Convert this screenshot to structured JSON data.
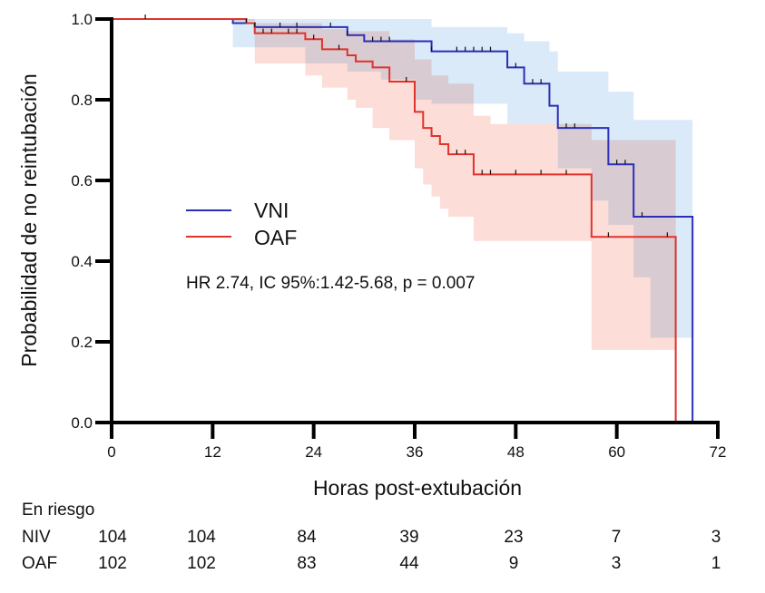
{
  "chart_data": {
    "type": "line",
    "subtype": "kaplan-meier",
    "title": "",
    "xlabel": "Horas post-extubación",
    "ylabel": "Probabilidad de no reintubación",
    "xlim": [
      0,
      72
    ],
    "ylim": [
      0,
      1.0
    ],
    "xticks": [
      0,
      12,
      24,
      36,
      48,
      60,
      72
    ],
    "xtick_labels": [
      "0",
      "12",
      "24",
      "36",
      "48",
      "60",
      "72"
    ],
    "yticks": [
      0.0,
      0.2,
      0.4,
      0.6,
      0.8,
      1.0
    ],
    "ytick_labels": [
      "0.0",
      "0.2",
      "0.4",
      "0.6",
      "0.8",
      "1.0"
    ],
    "grid": false,
    "legend_position": "center-left",
    "annotation": "HR 2.74, IC 95%:1.42-5.68, p = 0.007",
    "series": [
      {
        "name": "VNI",
        "color": "#2b2fb8",
        "band_color": "#cfe3f7",
        "steps": [
          [
            0,
            1.0
          ],
          [
            14.4,
            0.99
          ],
          [
            17,
            0.98
          ],
          [
            28,
            0.96
          ],
          [
            30,
            0.945
          ],
          [
            38,
            0.92
          ],
          [
            47,
            0.88
          ],
          [
            49,
            0.84
          ],
          [
            52,
            0.785
          ],
          [
            53,
            0.73
          ],
          [
            59,
            0.64
          ],
          [
            62,
            0.51
          ],
          [
            69,
            0.0
          ]
        ],
        "ci_lower": [
          [
            0,
            1.0
          ],
          [
            14.4,
            0.93
          ],
          [
            17,
            0.93
          ],
          [
            23,
            0.89
          ],
          [
            28,
            0.87
          ],
          [
            32,
            0.85
          ],
          [
            36,
            0.8
          ],
          [
            38,
            0.79
          ],
          [
            47,
            0.74
          ],
          [
            53,
            0.63
          ],
          [
            57,
            0.55
          ],
          [
            59,
            0.49
          ],
          [
            62,
            0.36
          ],
          [
            64,
            0.21
          ],
          [
            69,
            0.21
          ]
        ],
        "ci_upper": [
          [
            0,
            1.0
          ],
          [
            14.4,
            1.0
          ],
          [
            17,
            1.0
          ],
          [
            38,
            0.98
          ],
          [
            47,
            0.965
          ],
          [
            49,
            0.945
          ],
          [
            52,
            0.92
          ],
          [
            53,
            0.87
          ],
          [
            59,
            0.82
          ],
          [
            62,
            0.75
          ],
          [
            69,
            0.75
          ]
        ],
        "censor_times": [
          4,
          17,
          20,
          22,
          26,
          28,
          31,
          32,
          33,
          38,
          41,
          42,
          43,
          44,
          45,
          48,
          50,
          51,
          54,
          55,
          60,
          61,
          63
        ]
      },
      {
        "name": "OAF",
        "color": "#e0332c",
        "band_color": "#fbd1ca",
        "steps": [
          [
            0,
            1.0
          ],
          [
            16,
            0.99
          ],
          [
            17,
            0.965
          ],
          [
            23,
            0.95
          ],
          [
            25,
            0.925
          ],
          [
            28,
            0.91
          ],
          [
            29,
            0.895
          ],
          [
            31,
            0.88
          ],
          [
            33,
            0.845
          ],
          [
            36,
            0.77
          ],
          [
            37,
            0.73
          ],
          [
            38,
            0.71
          ],
          [
            39,
            0.69
          ],
          [
            40,
            0.665
          ],
          [
            43,
            0.615
          ],
          [
            57,
            0.46
          ],
          [
            67,
            0.0
          ]
        ],
        "ci_lower": [
          [
            0,
            1.0
          ],
          [
            17,
            0.89
          ],
          [
            23,
            0.86
          ],
          [
            25,
            0.83
          ],
          [
            28,
            0.8
          ],
          [
            29,
            0.78
          ],
          [
            31,
            0.73
          ],
          [
            33,
            0.7
          ],
          [
            36,
            0.63
          ],
          [
            37,
            0.59
          ],
          [
            38,
            0.56
          ],
          [
            39,
            0.53
          ],
          [
            40,
            0.51
          ],
          [
            43,
            0.45
          ],
          [
            57,
            0.18
          ],
          [
            67,
            0.18
          ]
        ],
        "ci_upper": [
          [
            0,
            1.0
          ],
          [
            14.4,
            0.995
          ],
          [
            17,
            0.99
          ],
          [
            25,
            0.975
          ],
          [
            28,
            0.97
          ],
          [
            33,
            0.95
          ],
          [
            36,
            0.9
          ],
          [
            38,
            0.86
          ],
          [
            40,
            0.84
          ],
          [
            43,
            0.76
          ],
          [
            45,
            0.74
          ],
          [
            52,
            0.74
          ],
          [
            57,
            0.7
          ],
          [
            67,
            0.7
          ]
        ],
        "censor_times": [
          16,
          18,
          19,
          21,
          22,
          24,
          27,
          35,
          41,
          42,
          44,
          45,
          48,
          51,
          54,
          59,
          66
        ]
      }
    ]
  },
  "risk_table": {
    "title": "En riesgo",
    "times": [
      0,
      12,
      24,
      36,
      48,
      60,
      72
    ],
    "rows": [
      {
        "label": "NIV",
        "values": [
          "104",
          "104",
          "84",
          "39",
          "23",
          "7",
          "3"
        ]
      },
      {
        "label": "OAF",
        "values": [
          "102",
          "102",
          "83",
          "44",
          "9",
          "3",
          "1"
        ]
      }
    ]
  }
}
